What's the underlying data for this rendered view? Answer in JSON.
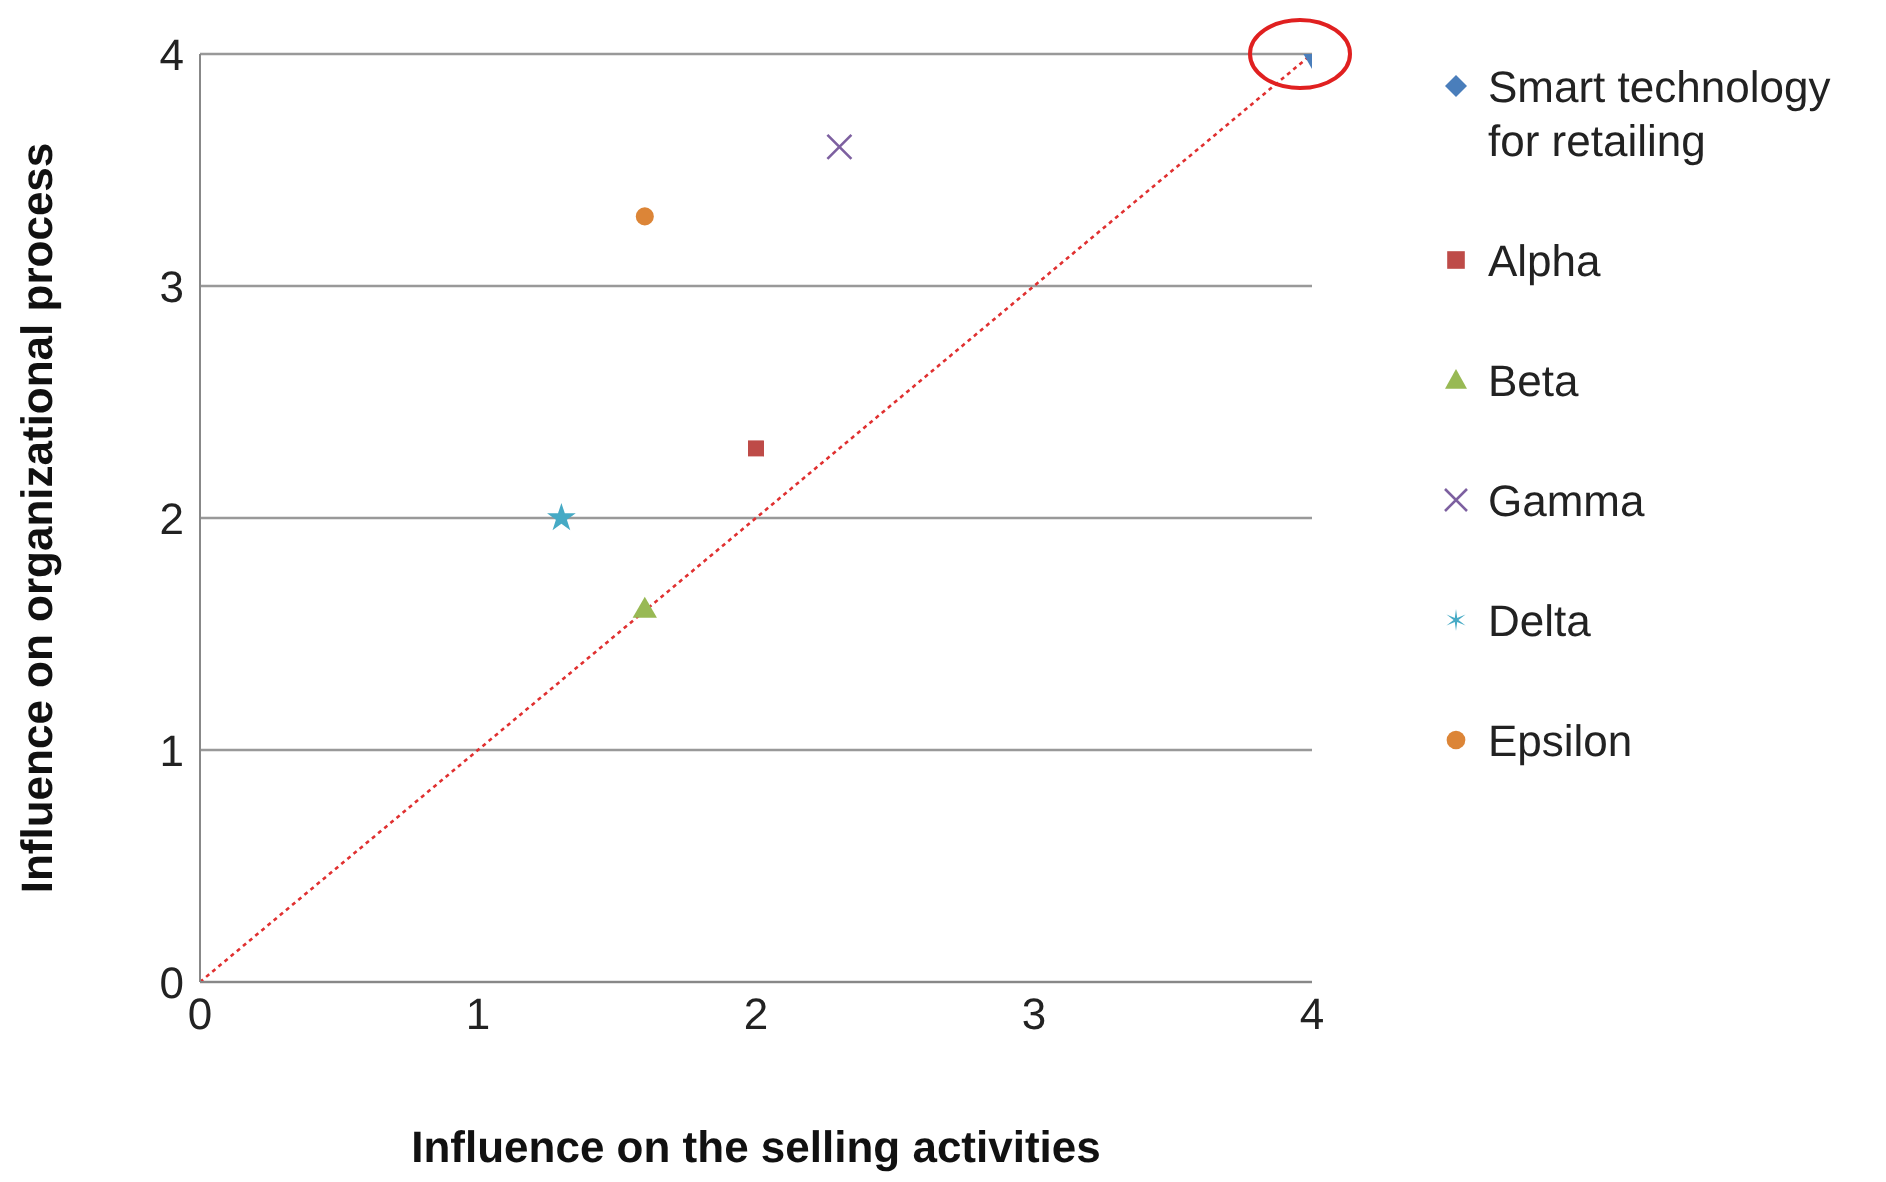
{
  "chart_data": {
    "type": "scatter",
    "xlabel": "Influence on the selling activities",
    "ylabel": "Influence on organizational process",
    "xlim": [
      0,
      4
    ],
    "xticks": [
      0,
      1,
      2,
      3,
      4
    ],
    "ylim": [
      0,
      4
    ],
    "yticks": [
      0,
      1,
      2,
      3,
      4
    ],
    "grid": "y",
    "legend": "right",
    "series": [
      {
        "name": "Smart technology for retailing",
        "color": "#4a7ebb",
        "marker": "diamond",
        "x": [
          4
        ],
        "values": [
          4
        ]
      },
      {
        "name": "Alpha",
        "color": "#be4b48",
        "marker": "square",
        "x": [
          2
        ],
        "values": [
          2.3
        ]
      },
      {
        "name": "Beta",
        "color": "#98b954",
        "marker": "triangle",
        "x": [
          1.6
        ],
        "values": [
          1.6
        ]
      },
      {
        "name": "Gamma",
        "color": "#7d60a0",
        "marker": "cross",
        "x": [
          2.3
        ],
        "values": [
          3.6
        ]
      },
      {
        "name": "Delta",
        "color": "#46aac5",
        "marker": "star",
        "x": [
          1.3
        ],
        "values": [
          2
        ]
      },
      {
        "name": "Epsilon",
        "color": "#dc8537",
        "marker": "circle",
        "x": [
          1.6
        ],
        "values": [
          3.3
        ]
      },
      {
        "type": "line",
        "color": "#e03030",
        "line_style": "dotted",
        "x": [
          0,
          4
        ],
        "values": [
          0,
          4
        ]
      }
    ]
  }
}
